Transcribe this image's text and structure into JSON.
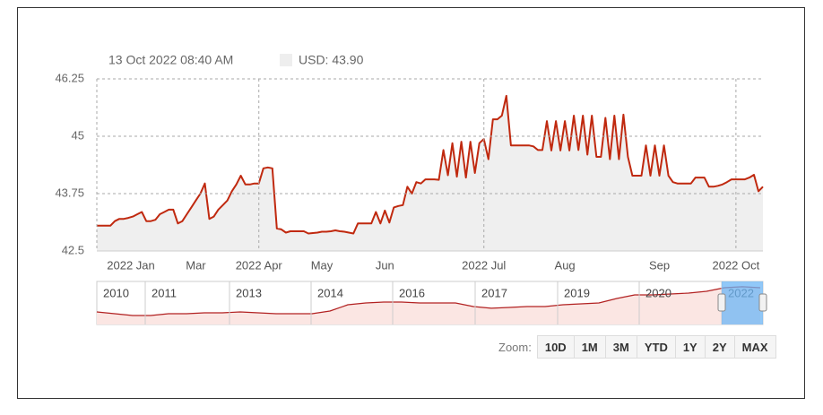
{
  "chart_data": [
    {
      "type": "area",
      "color": "#c0290f",
      "fill_color": "#efefef",
      "annotations": [
        "13 Oct 2022 08:40 AM",
        "USD: 43.90"
      ],
      "values": [
        43.05,
        43.05,
        43.05,
        43.05,
        43.15,
        43.2,
        43.2,
        43.22,
        43.25,
        43.3,
        43.35,
        43.15,
        43.15,
        43.18,
        43.3,
        43.35,
        43.4,
        43.4,
        43.1,
        43.15,
        43.3,
        43.45,
        43.6,
        43.75,
        43.97,
        43.2,
        43.25,
        43.4,
        43.5,
        43.6,
        43.8,
        43.95,
        44.14,
        43.95,
        43.95,
        43.97,
        43.97,
        44.3,
        44.32,
        44.3,
        42.99,
        42.97,
        42.9,
        42.93,
        42.93,
        42.93,
        42.93,
        42.88,
        42.89,
        42.9,
        42.92,
        42.92,
        42.93,
        42.95,
        42.93,
        42.92,
        42.9,
        42.88,
        43.1,
        43.1,
        43.1,
        43.1,
        43.35,
        43.1,
        43.38,
        43.12,
        43.45,
        43.48,
        43.5,
        43.9,
        43.75,
        44.0,
        43.97,
        44.06,
        44.06,
        44.06,
        44.05,
        44.7,
        44.15,
        44.85,
        44.12,
        44.88,
        44.1,
        44.88,
        44.2,
        44.85,
        44.94,
        44.5,
        45.37,
        45.37,
        45.45,
        45.88,
        44.8,
        44.8,
        44.8,
        44.8,
        44.8,
        44.78,
        44.7,
        44.7,
        45.33,
        44.69,
        45.33,
        44.69,
        45.33,
        44.69,
        45.45,
        44.7,
        45.45,
        44.6,
        45.45,
        44.55,
        44.55,
        45.4,
        44.5,
        45.45,
        44.5,
        45.47,
        44.55,
        44.14,
        44.14,
        44.14,
        44.8,
        44.14,
        44.8,
        44.14,
        44.8,
        44.14,
        44.0,
        43.97,
        43.97,
        43.97,
        43.97,
        44.1,
        44.1,
        44.1,
        43.9,
        43.9,
        43.92,
        43.95,
        44.0,
        44.06,
        44.06,
        44.06,
        44.06,
        44.1,
        44.16,
        43.8,
        43.9
      ],
      "xlim": [
        0,
        148
      ],
      "xticks": [
        {
          "value": 0,
          "label": "2022 Jan"
        },
        {
          "value": 22,
          "label": "Mar"
        },
        {
          "value": 36,
          "label": "2022 Apr"
        },
        {
          "value": 50,
          "label": "May"
        },
        {
          "value": 64,
          "label": "Jun"
        },
        {
          "value": 86,
          "label": "2022 Jul"
        },
        {
          "value": 104,
          "label": "Aug"
        },
        {
          "value": 125,
          "label": "Sep"
        },
        {
          "value": 142,
          "label": "2022 Oct"
        }
      ],
      "ylim": [
        42.5,
        46.25
      ],
      "yticks": [
        42.5,
        43.75,
        45,
        46.25
      ],
      "grid": true
    },
    {
      "type": "area",
      "color": "#b22222",
      "fill_color": "#fbe6e3",
      "values": [
        13.4,
        11.5,
        9.6,
        9.6,
        11.5,
        11.5,
        12.5,
        12.5,
        13.4,
        12.5,
        11.5,
        11.5,
        11.5,
        14.4,
        21.1,
        23,
        24,
        24,
        23,
        23,
        23,
        19.2,
        17.3,
        18.2,
        19.2,
        19.2,
        21.1,
        22,
        23,
        27.8,
        31.6,
        31.6,
        32.6,
        33.5,
        35.5,
        39.3,
        40.3,
        39.3
      ],
      "xlim": [
        0,
        37.15
      ],
      "xticks": [
        {
          "value": 0,
          "label": "2010"
        },
        {
          "value": 2.7,
          "label": "2011"
        },
        {
          "value": 7.4,
          "label": "2013"
        },
        {
          "value": 11.95,
          "label": "2014"
        },
        {
          "value": 16.5,
          "label": "2016"
        },
        {
          "value": 21.1,
          "label": "2017"
        },
        {
          "value": 25.7,
          "label": "2019"
        },
        {
          "value": 30.25,
          "label": "2020"
        },
        {
          "value": 34.85,
          "label": "2022"
        }
      ],
      "ylim": [
        0,
        46
      ]
    }
  ],
  "zoom": {
    "label": "Zoom:",
    "buttons": [
      "10D",
      "1M",
      "3M",
      "YTD",
      "1Y",
      "2Y",
      "MAX"
    ]
  }
}
